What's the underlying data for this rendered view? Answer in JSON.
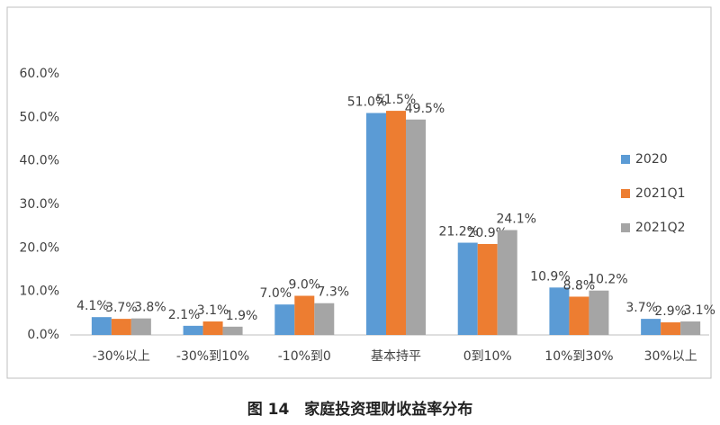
{
  "chart_data": {
    "type": "bar",
    "categories": [
      "-30%以上",
      "-30%到10%",
      "-10%到0",
      "基本持平",
      "0到10%",
      "10%到30%",
      "30%以上"
    ],
    "series": [
      {
        "name": "2020",
        "color": "#5b9bd5",
        "values": [
          4.1,
          2.1,
          7.0,
          51.0,
          21.2,
          10.9,
          3.7
        ],
        "value_labels": [
          "4.1%",
          "2.1%",
          "7.0%",
          "51.0%",
          "21.2%",
          "10.9%",
          "3.7%"
        ]
      },
      {
        "name": "2021Q1",
        "color": "#ed7d31",
        "values": [
          3.7,
          3.1,
          9.0,
          51.5,
          20.9,
          8.8,
          2.9
        ],
        "value_labels": [
          "3.7%",
          "3.1%",
          "9.0%",
          "51.5%",
          "20.9%",
          "8.8%",
          "2.9%"
        ]
      },
      {
        "name": "2021Q2",
        "color": "#a5a5a5",
        "values": [
          3.8,
          1.9,
          7.3,
          49.5,
          24.1,
          10.2,
          3.1
        ],
        "value_labels": [
          "3.8%",
          "1.9%",
          "7.3%",
          "49.5%",
          "24.1%",
          "10.2%",
          "3.1%"
        ]
      }
    ],
    "ylim": [
      0,
      60
    ],
    "yticks": [
      {
        "value": 0,
        "label": "0.0%"
      },
      {
        "value": 10,
        "label": "10.0%"
      },
      {
        "value": 20,
        "label": "20.0%"
      },
      {
        "value": 30,
        "label": "30.0%"
      },
      {
        "value": 40,
        "label": "40.0%"
      },
      {
        "value": 50,
        "label": "50.0%"
      },
      {
        "value": 60,
        "label": "60.0%"
      }
    ],
    "grid": false,
    "legend": "right"
  },
  "caption": "图 14　家庭投资理财收益率分布"
}
